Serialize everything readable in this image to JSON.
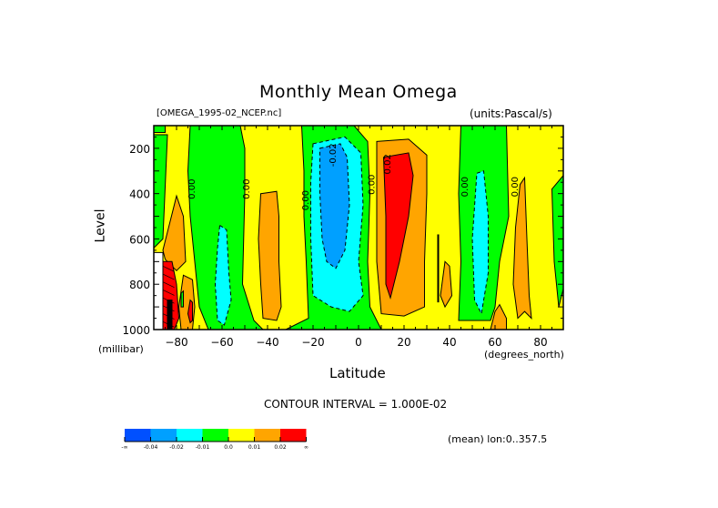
{
  "chart_data": {
    "type": "heatmap",
    "subtype": "filled-contour",
    "title": "Monthly Mean Omega",
    "source_label": "[OMEGA_1995-02_NCEP.nc]",
    "units_label": "(units:Pascal/s)",
    "xlabel": "Latitude",
    "xunit": "(degrees_north)",
    "ylabel": "Level",
    "yunit": "(millibar)",
    "xlim": [
      -90,
      90
    ],
    "ylim": [
      1000,
      100
    ],
    "xticks": [
      -80,
      -60,
      -40,
      -20,
      0,
      20,
      40,
      60,
      80
    ],
    "yticks": [
      200,
      400,
      600,
      800,
      1000
    ],
    "contour_interval_label": "CONTOUR INTERVAL = 1.000E-02",
    "averaging_label": "(mean) lon:0..357.5",
    "contour_labels": [
      {
        "text": "0.00",
        "lat": -72,
        "lev": 380
      },
      {
        "text": "0.00",
        "lat": -48,
        "lev": 380
      },
      {
        "text": "0.00",
        "lat": -22,
        "lev": 430
      },
      {
        "text": "-0.02",
        "lat": -10,
        "lev": 230
      },
      {
        "text": "0.00",
        "lat": 7,
        "lev": 360
      },
      {
        "text": "0.02",
        "lat": 14,
        "lev": 270
      },
      {
        "text": "0.00",
        "lat": 48,
        "lev": 370
      },
      {
        "text": "0.00",
        "lat": 70,
        "lev": 370
      }
    ],
    "colorbar": {
      "levels": [
        "-∞",
        "-0.04",
        "-0.02",
        "-0.01",
        "0.0",
        "0.01",
        "0.02",
        "∞"
      ],
      "colors": [
        "#0050ff",
        "#00a0ff",
        "#00ffff",
        "#00ff00",
        "#ffff00",
        "#ffa500",
        "#ff0000"
      ]
    },
    "regions": [
      {
        "name": "background",
        "color": "#ffff00"
      },
      {
        "name": "green-top-left",
        "color": "#00ff00",
        "poly": [
          [
            -90,
            100
          ],
          [
            -85,
            100
          ],
          [
            -85,
            130
          ],
          [
            -90,
            130
          ]
        ]
      },
      {
        "name": "green-south-band",
        "color": "#00ff00",
        "poly": [
          [
            -90,
            140
          ],
          [
            -84,
            140
          ],
          [
            -86,
            600
          ],
          [
            -90,
            640
          ]
        ]
      },
      {
        "name": "green-60S",
        "color": "#00ff00",
        "poly": [
          [
            -74,
            100
          ],
          [
            -52,
            100
          ],
          [
            -50,
            200
          ],
          [
            -50,
            400
          ],
          [
            -51,
            800
          ],
          [
            -46,
            960
          ],
          [
            -42,
            1000
          ],
          [
            -66,
            1000
          ],
          [
            -70,
            900
          ],
          [
            -72,
            700
          ],
          [
            -74,
            500
          ],
          [
            -75,
            300
          ]
        ]
      },
      {
        "name": "cyan-60S",
        "color": "#00ffff",
        "poly": [
          [
            -61,
            540
          ],
          [
            -58,
            560
          ],
          [
            -57,
            750
          ],
          [
            -56,
            870
          ],
          [
            -59,
            980
          ],
          [
            -62,
            960
          ],
          [
            -63,
            800
          ],
          [
            -62,
            640
          ]
        ]
      },
      {
        "name": "orange-40S",
        "color": "#ffa500",
        "poly": [
          [
            -43,
            400
          ],
          [
            -36,
            390
          ],
          [
            -35,
            500
          ],
          [
            -35,
            700
          ],
          [
            -34,
            900
          ],
          [
            -36,
            960
          ],
          [
            -42,
            950
          ],
          [
            -43,
            800
          ],
          [
            -44,
            600
          ]
        ]
      },
      {
        "name": "green-equator",
        "color": "#00ff00",
        "poly": [
          [
            -25,
            100
          ],
          [
            -2,
            100
          ],
          [
            4,
            170
          ],
          [
            5,
            400
          ],
          [
            4,
            700
          ],
          [
            5,
            900
          ],
          [
            10,
            1000
          ],
          [
            -32,
            1000
          ],
          [
            -22,
            950
          ],
          [
            -23,
            700
          ],
          [
            -24,
            500
          ],
          [
            -24,
            300
          ]
        ]
      },
      {
        "name": "cyan-equator",
        "color": "#00ffff",
        "poly": [
          [
            -20,
            180
          ],
          [
            -6,
            150
          ],
          [
            1,
            220
          ],
          [
            2,
            450
          ],
          [
            0,
            700
          ],
          [
            2,
            850
          ],
          [
            -4,
            920
          ],
          [
            -12,
            900
          ],
          [
            -20,
            850
          ],
          [
            -21,
            600
          ],
          [
            -21,
            350
          ]
        ]
      },
      {
        "name": "blue-equator",
        "color": "#00a0ff",
        "poly": [
          [
            -17,
            200
          ],
          [
            -8,
            180
          ],
          [
            -5,
            240
          ],
          [
            -4,
            450
          ],
          [
            -6,
            650
          ],
          [
            -10,
            730
          ],
          [
            -14,
            700
          ],
          [
            -16,
            600
          ],
          [
            -17,
            400
          ]
        ]
      },
      {
        "name": "orange-20N",
        "color": "#ffa500",
        "poly": [
          [
            8,
            170
          ],
          [
            22,
            160
          ],
          [
            30,
            230
          ],
          [
            30,
            400
          ],
          [
            29,
            700
          ],
          [
            29,
            900
          ],
          [
            20,
            940
          ],
          [
            10,
            930
          ],
          [
            8,
            700
          ],
          [
            8,
            400
          ]
        ]
      },
      {
        "name": "red-20N",
        "color": "#ff0000",
        "poly": [
          [
            11,
            240
          ],
          [
            22,
            220
          ],
          [
            24,
            320
          ],
          [
            22,
            500
          ],
          [
            18,
            700
          ],
          [
            14,
            860
          ],
          [
            12,
            800
          ],
          [
            12,
            500
          ]
        ]
      },
      {
        "name": "orange-38N",
        "color": "#ffa500",
        "poly": [
          [
            38,
            700
          ],
          [
            40,
            720
          ],
          [
            41,
            850
          ],
          [
            38,
            900
          ],
          [
            36,
            850
          ]
        ]
      },
      {
        "name": "green-55N",
        "color": "#00ff00",
        "poly": [
          [
            45,
            100
          ],
          [
            65,
            100
          ],
          [
            66,
            500
          ],
          [
            62,
            700
          ],
          [
            60,
            900
          ],
          [
            58,
            960
          ],
          [
            44,
            960
          ],
          [
            45,
            700
          ],
          [
            44,
            400
          ]
        ]
      },
      {
        "name": "cyan-55N",
        "color": "#00ffff",
        "poly": [
          [
            52,
            310
          ],
          [
            55,
            300
          ],
          [
            57,
            500
          ],
          [
            57,
            750
          ],
          [
            54,
            930
          ],
          [
            51,
            870
          ],
          [
            50,
            600
          ]
        ]
      },
      {
        "name": "orange-75N",
        "color": "#ffa500",
        "poly": [
          [
            71,
            360
          ],
          [
            73,
            330
          ],
          [
            74,
            600
          ],
          [
            75,
            850
          ],
          [
            76,
            950
          ],
          [
            73,
            920
          ],
          [
            70,
            950
          ],
          [
            68,
            800
          ],
          [
            69,
            550
          ]
        ]
      },
      {
        "name": "green-90N",
        "color": "#00ff00",
        "poly": [
          [
            85,
            380
          ],
          [
            90,
            320
          ],
          [
            90,
            820
          ],
          [
            88,
            900
          ],
          [
            86,
            700
          ]
        ]
      },
      {
        "name": "orange-60N-sfc",
        "color": "#ffa500",
        "poly": [
          [
            60,
            920
          ],
          [
            62,
            890
          ],
          [
            65,
            950
          ],
          [
            65,
            1000
          ],
          [
            58,
            1000
          ]
        ]
      },
      {
        "name": "orange-80S",
        "color": "#ffa500",
        "poly": [
          [
            -86,
            650
          ],
          [
            -80,
            410
          ],
          [
            -77,
            500
          ],
          [
            -76,
            700
          ],
          [
            -80,
            740
          ],
          [
            -85,
            690
          ]
        ]
      },
      {
        "name": "orange-75S-lower",
        "color": "#ffa500",
        "poly": [
          [
            -77,
            760
          ],
          [
            -73,
            780
          ],
          [
            -72,
            900
          ],
          [
            -73,
            1000
          ],
          [
            -78,
            1000
          ],
          [
            -79,
            900
          ]
        ]
      },
      {
        "name": "red-73S",
        "color": "#ff0000",
        "poly": [
          [
            -74,
            870
          ],
          [
            -73,
            880
          ],
          [
            -73,
            960
          ],
          [
            -74,
            970
          ],
          [
            -75,
            930
          ]
        ]
      },
      {
        "name": "green-77S",
        "color": "#00ff00",
        "poly": [
          [
            -78,
            840
          ],
          [
            -77,
            830
          ],
          [
            -77,
            900
          ],
          [
            -78,
            900
          ]
        ]
      },
      {
        "name": "red-85S",
        "color": "#ff0000",
        "poly": [
          [
            -86,
            700
          ],
          [
            -82,
            700
          ],
          [
            -80,
            800
          ],
          [
            -79,
            950
          ],
          [
            -81,
            1000
          ],
          [
            -86,
            1000
          ]
        ]
      },
      {
        "name": "missing-antarctica",
        "color": "#ffffff",
        "poly": [
          [
            -90,
            660
          ],
          [
            -86,
            660
          ],
          [
            -86,
            1000
          ],
          [
            -90,
            1000
          ]
        ]
      },
      {
        "name": "dark-antarctic-edge",
        "color": "#000000",
        "poly": [
          [
            -84,
            870
          ],
          [
            -82,
            870
          ],
          [
            -82,
            1000
          ],
          [
            -84,
            1000
          ]
        ]
      }
    ]
  }
}
